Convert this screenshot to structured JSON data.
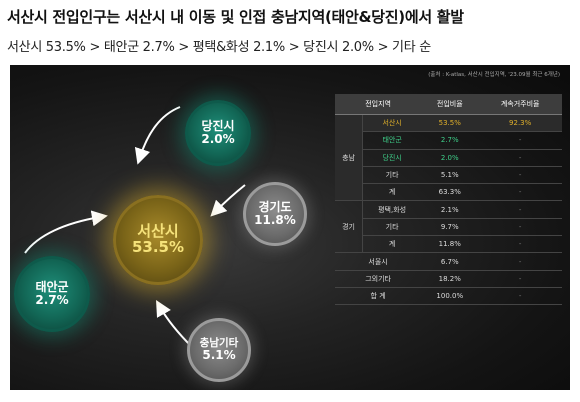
{
  "header": {
    "title": "서산시 전입인구는 서산시 내 이동 및 인접 충남지역(태안&당진)에서 활발",
    "subtitle": "서산시 53.5% > 태안군 2.7% > 평택&화성 2.1% > 당진시 2.0% > 기타 순"
  },
  "source": "(출처 : K-atlas, 서산시 전입지역, '23.09월 최근 6개년)",
  "bubbles": [
    {
      "id": "dangjin",
      "name": "당진시",
      "pct": "2.0%",
      "style": "teal"
    },
    {
      "id": "gyeonggi",
      "name": "경기도",
      "pct": "11.8%",
      "style": "gray"
    },
    {
      "id": "seosan",
      "name": "서산시",
      "pct": "53.5%",
      "style": "gold"
    },
    {
      "id": "taean",
      "name": "태안군",
      "pct": "2.7%",
      "style": "teal"
    },
    {
      "id": "chungnam",
      "name": "충남기타",
      "pct": "5.1%",
      "style": "gray"
    }
  ],
  "table": {
    "headers": [
      "전입지역",
      "전입비율",
      "계속거주비율"
    ],
    "groups": {
      "chungnam": "충남",
      "gyeonggi": "경기"
    },
    "rows": [
      {
        "region": "서산시",
        "ratio": "53.5%",
        "stay": "92.3%"
      },
      {
        "region": "태안군",
        "ratio": "2.7%",
        "stay": "-"
      },
      {
        "region": "당진시",
        "ratio": "2.0%",
        "stay": "-"
      },
      {
        "region": "기타",
        "ratio": "5.1%",
        "stay": "-"
      },
      {
        "region": "계",
        "ratio": "63.3%",
        "stay": "-"
      },
      {
        "region": "평택,화성",
        "ratio": "2.1%",
        "stay": "-"
      },
      {
        "region": "기타",
        "ratio": "9.7%",
        "stay": "-"
      },
      {
        "region": "계",
        "ratio": "11.8%",
        "stay": "-"
      },
      {
        "region": "서울시",
        "ratio": "6.7%",
        "stay": "-"
      },
      {
        "region": "그외기타",
        "ratio": "18.2%",
        "stay": "-"
      },
      {
        "region": "합 계",
        "ratio": "100.0%",
        "stay": "-"
      }
    ]
  },
  "colors": {
    "gold": "#e0b02a",
    "green": "#3fd08a",
    "teal": "#126655",
    "gray": "#6c6c6c"
  }
}
